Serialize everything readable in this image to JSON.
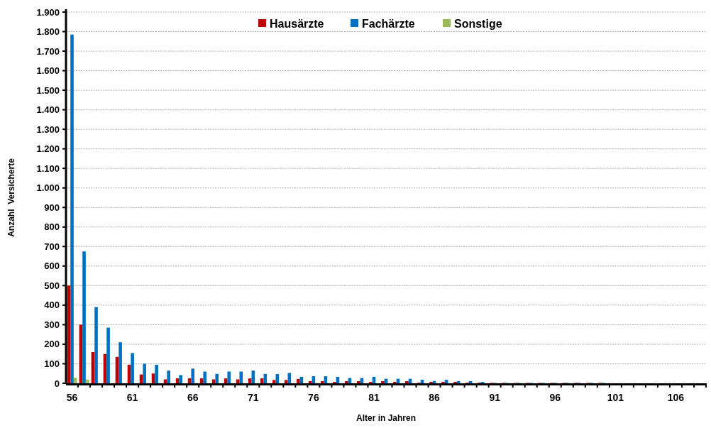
{
  "chart_data": {
    "type": "bar",
    "xlabel": "Alter in Jahren",
    "ylabel": "Anzahl  Versicherte",
    "categories": [
      "56",
      null,
      null,
      null,
      null,
      "61",
      null,
      null,
      null,
      null,
      "66",
      null,
      null,
      null,
      null,
      "71",
      null,
      null,
      null,
      null,
      "76",
      null,
      null,
      null,
      null,
      "81",
      null,
      null,
      null,
      null,
      "86",
      null,
      null,
      null,
      null,
      "91",
      null,
      null,
      null,
      null,
      "96",
      null,
      null,
      null,
      null,
      "101",
      null,
      null,
      null,
      null,
      "106",
      null,
      null
    ],
    "series": [
      {
        "name": "Hausärzte",
        "color": "#c00000",
        "values": [
          500,
          300,
          160,
          150,
          135,
          95,
          45,
          50,
          20,
          25,
          25,
          25,
          20,
          25,
          20,
          25,
          25,
          17,
          17,
          22,
          11,
          11,
          7,
          11,
          11,
          7,
          11,
          7,
          11,
          3,
          7,
          7,
          7,
          3,
          3,
          2,
          2,
          2,
          2,
          2,
          2,
          2,
          2,
          2,
          2,
          0,
          0,
          0,
          0,
          0,
          0,
          0,
          0
        ]
      },
      {
        "name": "Fachärzte",
        "color": "#0070c0",
        "values": [
          1785,
          675,
          390,
          285,
          210,
          155,
          100,
          95,
          65,
          42,
          75,
          60,
          48,
          60,
          60,
          65,
          48,
          47,
          53,
          33,
          36,
          36,
          33,
          27,
          27,
          33,
          23,
          23,
          23,
          18,
          12,
          18,
          11,
          11,
          7,
          2,
          2,
          2,
          2,
          2,
          2,
          2,
          2,
          2,
          2,
          0,
          0,
          0,
          0,
          0,
          0,
          0,
          0
        ]
      },
      {
        "name": "Sonstige",
        "color": "#9bbb59",
        "values": [
          28,
          19,
          0,
          0,
          0,
          0,
          0,
          0,
          0,
          0,
          0,
          0,
          0,
          0,
          0,
          0,
          0,
          0,
          0,
          0,
          0,
          0,
          0,
          0,
          0,
          0,
          0,
          0,
          0,
          0,
          0,
          0,
          0,
          0,
          0,
          0,
          0,
          0,
          0,
          0,
          0,
          0,
          0,
          0,
          0,
          0,
          0,
          0,
          0,
          0,
          0,
          0,
          0
        ]
      }
    ],
    "ylim": [
      0,
      1900
    ],
    "yticks": [
      0,
      100,
      200,
      300,
      400,
      500,
      600,
      700,
      800,
      900,
      {
        "value": 1000,
        "label": "1.000"
      },
      {
        "value": 1100,
        "label": "1.100"
      },
      {
        "value": 1200,
        "label": "1.200"
      },
      {
        "value": 1300,
        "label": "1.300"
      },
      {
        "value": 1400,
        "label": "1.400"
      },
      {
        "value": 1500,
        "label": "1.500"
      },
      {
        "value": 1600,
        "label": "1.600"
      },
      {
        "value": 1700,
        "label": "1.700"
      },
      {
        "value": 1800,
        "label": "1.800"
      },
      {
        "value": 1900,
        "label": "1.900"
      }
    ],
    "grid": "y",
    "legend": "top"
  }
}
